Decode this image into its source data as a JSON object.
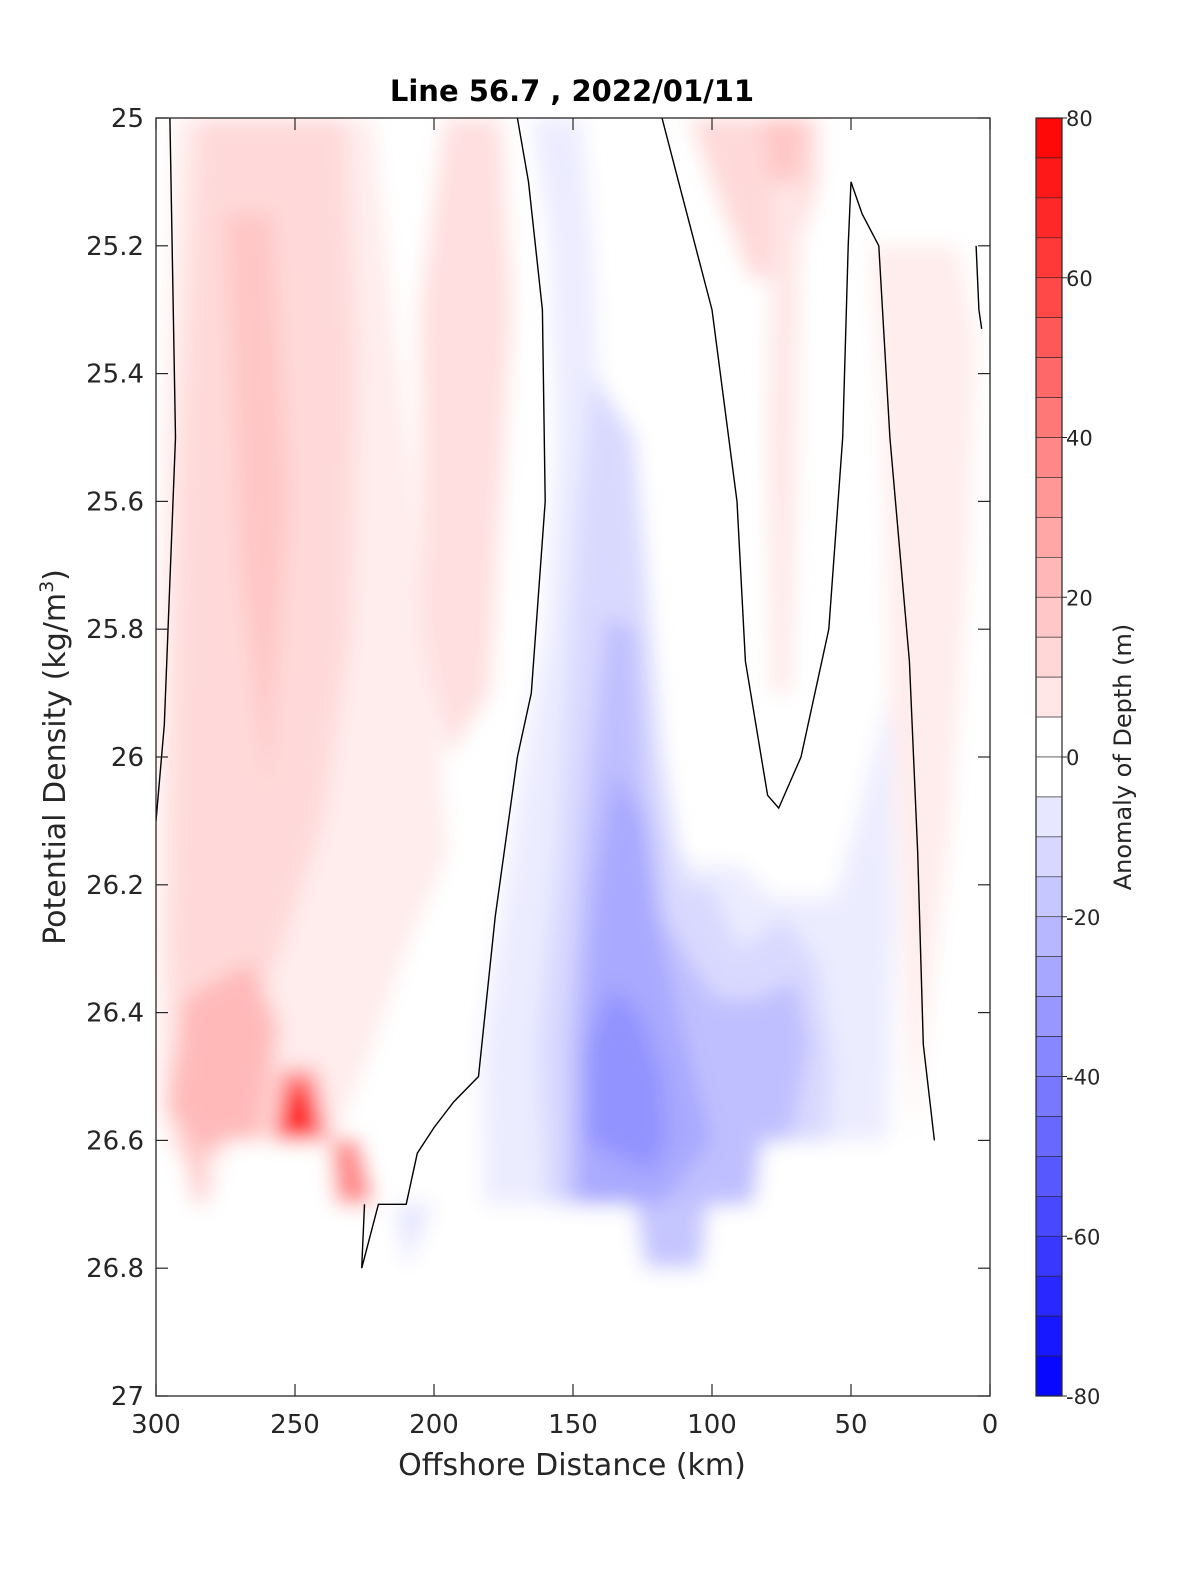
{
  "chart_data": {
    "type": "heatmap",
    "title": "Line 56.7 , 2022/01/11",
    "xlabel": "Offshore Distance (km)",
    "ylabel_main": "Potential Density (kg/m",
    "ylabel_sup": "3",
    "ylabel_close": ")",
    "colorbar_label": "Anomaly of Depth (m)",
    "xlim": [
      300,
      0
    ],
    "ylim": [
      25,
      27
    ],
    "x_reversed": true,
    "y_reversed": true,
    "x_ticks": [
      300,
      250,
      200,
      150,
      100,
      50,
      0
    ],
    "x_tick_labels": [
      "300",
      "250",
      "200",
      "150",
      "100",
      "50",
      "0"
    ],
    "y_ticks": [
      25,
      25.2,
      25.4,
      25.6,
      25.8,
      26,
      26.2,
      26.4,
      26.6,
      26.8,
      27
    ],
    "y_tick_labels": [
      "25",
      "25.2",
      "25.4",
      "25.6",
      "25.8",
      "26",
      "26.2",
      "26.4",
      "26.6",
      "26.8",
      "27"
    ],
    "colorbar_range": [
      -80,
      80
    ],
    "colorbar_step": 5,
    "colorbar_ticks": [
      80,
      60,
      40,
      20,
      0,
      -20,
      -40,
      -60,
      -80
    ],
    "colorbar_tick_labels": [
      "80",
      "60",
      "40",
      "20",
      "0",
      "-20",
      "-40",
      "-60",
      "-80"
    ],
    "colormap": {
      "negative_end": "#0000ff",
      "zero": "#ffffff",
      "positive_end": "#ff0000"
    },
    "zero_contour_color": "#000000",
    "grid": false,
    "features": [
      {
        "sign": "positive",
        "x": 250,
        "y": 26.58,
        "value": 72
      },
      {
        "sign": "positive",
        "x": 230,
        "y": 26.68,
        "value": 40
      },
      {
        "sign": "positive",
        "x": 275,
        "y": 26.5,
        "value": 22
      },
      {
        "sign": "positive",
        "x": 265,
        "y": 25.6,
        "value": 16
      },
      {
        "sign": "positive",
        "x": 215,
        "y": 25.6,
        "value": 12
      },
      {
        "sign": "positive",
        "x": 75,
        "y": 25.05,
        "value": 16
      },
      {
        "sign": "positive",
        "x": 20,
        "y": 25.3,
        "value": 10
      },
      {
        "sign": "negative",
        "x": 130,
        "y": 26.5,
        "value": -34
      },
      {
        "sign": "negative",
        "x": 140,
        "y": 26.2,
        "value": -22
      },
      {
        "sign": "negative",
        "x": 140,
        "y": 25.6,
        "value": -12
      },
      {
        "sign": "negative",
        "x": 80,
        "y": 26.45,
        "value": -20
      },
      {
        "sign": "negative",
        "x": 120,
        "y": 26.72,
        "value": -22
      },
      {
        "sign": "negative",
        "x": 205,
        "y": 26.75,
        "value": -8
      }
    ]
  }
}
